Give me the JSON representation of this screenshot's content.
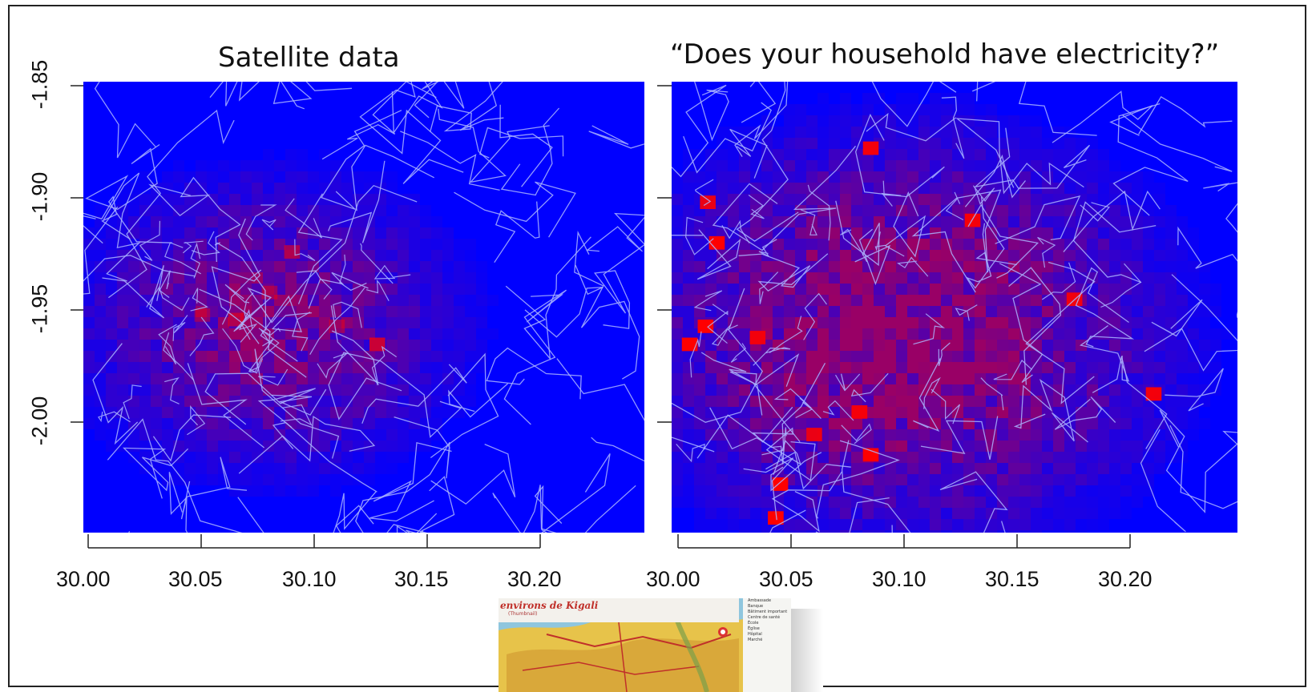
{
  "chart_data": [
    {
      "type": "heatmap",
      "title": "Satellite data",
      "xlim": [
        29.998,
        30.248
      ],
      "ylim": [
        -2.047,
        -1.847
      ],
      "x_ticks": [
        "30.00",
        "30.05",
        "30.10",
        "30.15",
        "30.20"
      ],
      "y_ticks": [
        "-1.85",
        "-1.90",
        "-1.95",
        "-2.00"
      ],
      "colors": {
        "low": "#0000ff",
        "high": "#ff0000",
        "boundaries": "#aab4ff"
      },
      "hotspots": [
        {
          "x": 30.065,
          "y": -1.952,
          "value": 0.55
        },
        {
          "x": 30.08,
          "y": -1.94,
          "value": 0.45
        },
        {
          "x": 30.09,
          "y": -1.922,
          "value": 0.55
        },
        {
          "x": 30.11,
          "y": -1.955,
          "value": 0.45
        },
        {
          "x": 30.128,
          "y": -1.963,
          "value": 0.75
        },
        {
          "x": 30.05,
          "y": -1.95,
          "value": 0.4
        }
      ]
    },
    {
      "type": "heatmap",
      "title": "“Does your household have electricity?”",
      "xlim": [
        29.998,
        30.248
      ],
      "ylim": [
        -2.047,
        -1.847
      ],
      "x_ticks": [
        "30.00",
        "30.05",
        "30.10",
        "30.15",
        "30.20"
      ],
      "y_ticks": [
        "-1.85",
        "-1.90",
        "-1.95",
        "-2.00"
      ],
      "colors": {
        "low": "#0000ff",
        "high": "#ff0000",
        "boundaries": "#aab4ff"
      },
      "hotspots": [
        {
          "x": 30.005,
          "y": -1.963,
          "value": 1.0
        },
        {
          "x": 30.017,
          "y": -1.918,
          "value": 1.0
        },
        {
          "x": 30.013,
          "y": -1.9,
          "value": 0.9
        },
        {
          "x": 30.035,
          "y": -1.96,
          "value": 0.9
        },
        {
          "x": 30.012,
          "y": -1.955,
          "value": 1.0
        },
        {
          "x": 30.085,
          "y": -1.876,
          "value": 0.95
        },
        {
          "x": 30.13,
          "y": -1.908,
          "value": 0.95
        },
        {
          "x": 30.175,
          "y": -1.943,
          "value": 0.9
        },
        {
          "x": 30.08,
          "y": -1.993,
          "value": 0.9
        },
        {
          "x": 30.06,
          "y": -2.003,
          "value": 0.9
        },
        {
          "x": 30.085,
          "y": -2.012,
          "value": 1.0
        },
        {
          "x": 30.045,
          "y": -2.025,
          "value": 1.0
        },
        {
          "x": 30.043,
          "y": -2.04,
          "value": 1.0
        },
        {
          "x": 30.21,
          "y": -1.985,
          "value": 0.95
        }
      ]
    }
  ],
  "map_photo": {
    "title": "environs de Kigali",
    "subtitle": "(Thumbnail)",
    "legend": [
      "Ambassade",
      "Banque",
      "Bâtiment important",
      "Centre de santé",
      "École",
      "Église",
      "Hôpital",
      "Marché"
    ]
  }
}
